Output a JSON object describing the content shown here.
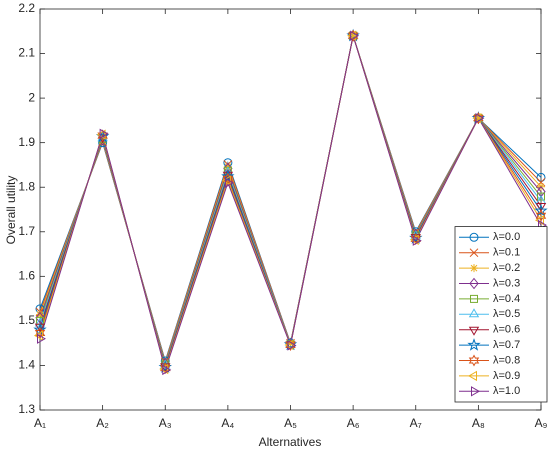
{
  "chart_data": {
    "type": "line",
    "x_label": "Alternatives",
    "y_label": "Overall utility",
    "categories": [
      "A₁",
      "A₂",
      "A₃",
      "A₄",
      "A₅",
      "A₆",
      "A₇",
      "A₈",
      "A₉"
    ],
    "ylim": [
      1.3,
      2.2
    ],
    "yticks": [
      1.3,
      1.4,
      1.5,
      1.6,
      1.7,
      1.8,
      1.9,
      2,
      2.1,
      2.2
    ],
    "legend": "lower right",
    "grid": false,
    "series": [
      {
        "name": "λ=0.0",
        "color": "#0072BD",
        "marker": "circle",
        "values": [
          1.527,
          1.9,
          1.41,
          1.855,
          1.45,
          2.14,
          1.7,
          1.955,
          1.822
        ]
      },
      {
        "name": "λ=0.1",
        "color": "#D95319",
        "marker": "x",
        "values": [
          1.52,
          1.902,
          1.408,
          1.851,
          1.45,
          2.14,
          1.698,
          1.955,
          1.811
        ]
      },
      {
        "name": "λ=0.2",
        "color": "#EDB120",
        "marker": "asterisk",
        "values": [
          1.514,
          1.904,
          1.406,
          1.846,
          1.449,
          2.14,
          1.696,
          1.955,
          1.801
        ]
      },
      {
        "name": "λ=0.3",
        "color": "#7E2F8E",
        "marker": "diamond",
        "values": [
          1.507,
          1.906,
          1.404,
          1.842,
          1.449,
          2.14,
          1.694,
          1.955,
          1.79
        ]
      },
      {
        "name": "λ=0.4",
        "color": "#77AC30",
        "marker": "square",
        "values": [
          1.5,
          1.908,
          1.402,
          1.837,
          1.448,
          2.14,
          1.692,
          1.955,
          1.779
        ]
      },
      {
        "name": "λ=0.5",
        "color": "#4DBEEE",
        "marker": "triangle-up",
        "values": [
          1.494,
          1.91,
          1.4,
          1.833,
          1.448,
          2.14,
          1.69,
          1.955,
          1.769
        ]
      },
      {
        "name": "λ=0.6",
        "color": "#A2142F",
        "marker": "triangle-down",
        "values": [
          1.487,
          1.912,
          1.398,
          1.828,
          1.447,
          2.14,
          1.688,
          1.955,
          1.758
        ]
      },
      {
        "name": "λ=0.7",
        "color": "#0072BD",
        "marker": "pentagram",
        "values": [
          1.48,
          1.914,
          1.396,
          1.824,
          1.447,
          2.14,
          1.686,
          1.955,
          1.747
        ]
      },
      {
        "name": "λ=0.8",
        "color": "#D95319",
        "marker": "hexagram",
        "values": [
          1.473,
          1.916,
          1.394,
          1.819,
          1.446,
          2.14,
          1.684,
          1.955,
          1.736
        ]
      },
      {
        "name": "λ=0.9",
        "color": "#EDB120",
        "marker": "triangle-left",
        "values": [
          1.467,
          1.918,
          1.392,
          1.815,
          1.446,
          2.14,
          1.682,
          1.955,
          1.726
        ]
      },
      {
        "name": "λ=1.0",
        "color": "#7E2F8E",
        "marker": "triangle-right",
        "values": [
          1.46,
          1.92,
          1.39,
          1.81,
          1.445,
          2.14,
          1.68,
          1.955,
          1.715
        ]
      }
    ]
  }
}
